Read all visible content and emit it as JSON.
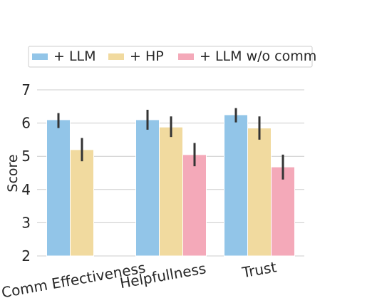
{
  "chart_data": {
    "type": "bar",
    "categories": [
      "Comm Effectiveness",
      "Helpfullness",
      "Trust"
    ],
    "series": [
      {
        "name": "+ LLM",
        "color": "#92c5e8",
        "values": [
          6.1,
          6.1,
          6.25
        ],
        "err_low": [
          5.85,
          5.8,
          6.02
        ],
        "err_high": [
          6.3,
          6.4,
          6.45
        ]
      },
      {
        "name": "+ HP",
        "color": "#f1da9f",
        "values": [
          5.2,
          5.88,
          5.85
        ],
        "err_low": [
          4.85,
          5.58,
          5.5
        ],
        "err_high": [
          5.55,
          6.2,
          6.2
        ]
      },
      {
        "name": "+ LLM w/o comm",
        "color": "#f4a9b9",
        "values": [
          null,
          5.05,
          4.68
        ],
        "err_low": [
          null,
          4.7,
          4.3
        ],
        "err_high": [
          null,
          5.4,
          5.05
        ]
      }
    ],
    "xlabel": "",
    "ylabel": "Score",
    "ylim": [
      2,
      7
    ],
    "yticks": [
      "2",
      "3",
      "4",
      "5",
      "6",
      "7"
    ],
    "grid": "horizontal",
    "legend": "top"
  }
}
